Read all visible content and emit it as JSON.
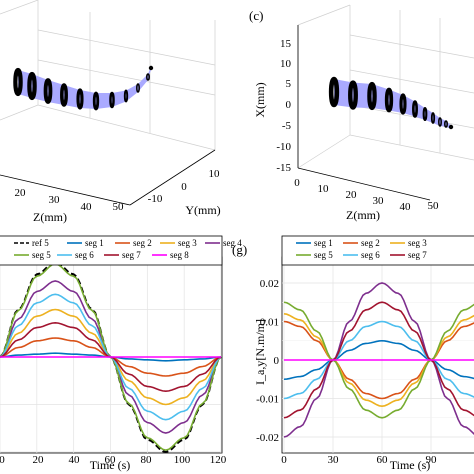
{
  "panels": {
    "c": {
      "label": "(c)",
      "xlabel": "X(mm)",
      "zlabel": "Z(mm)",
      "x_ticks": [
        "15",
        "10",
        "5",
        "0",
        "-5",
        "-10",
        "-15"
      ],
      "z_ticks": [
        "0",
        "10",
        "20",
        "30",
        "40",
        "50"
      ]
    },
    "b": {
      "zlabel": "Z(mm)",
      "ylabel": "Y(mm)",
      "z_ticks": [
        "20",
        "30",
        "40",
        "50"
      ],
      "y_ticks": [
        "10",
        "0",
        "-10"
      ]
    },
    "f": {
      "xlabel": "Time (s)",
      "x_ticks": [
        "0",
        "20",
        "40",
        "60",
        "80",
        "100",
        "120"
      ]
    },
    "g": {
      "label": "(g)",
      "ylabel": "I_a,y[N.m/m]",
      "xlabel": "Time (s)",
      "y_ticks": [
        "0.02",
        "0.01",
        "0",
        "-0.01",
        "-0.02"
      ],
      "x_ticks": [
        "0",
        "30",
        "60",
        "90"
      ]
    }
  },
  "legend_f": [
    "ref 5",
    "seg 1",
    "seg 2",
    "seg 3",
    "seg 4",
    "seg 5",
    "seg 6",
    "seg 7",
    "seg 8"
  ],
  "legend_g": [
    "seg 1",
    "seg 2",
    "seg 3",
    "seg 5",
    "seg 6",
    "seg 7"
  ],
  "colors": {
    "seg1": "#0072BD",
    "seg2": "#D95319",
    "seg3": "#EDB120",
    "seg4": "#7E2F8E",
    "seg5": "#77AC30",
    "seg6": "#4DBEEE",
    "seg7": "#A2142F",
    "seg8": "#FF00FF",
    "tube": "#aaaaff"
  },
  "chart_data": [
    {
      "type": "line",
      "panel": "f",
      "xlabel": "Time (s)",
      "xlim": [
        0,
        120
      ],
      "x": [
        0,
        10,
        20,
        30,
        40,
        50,
        60,
        70,
        80,
        90,
        100,
        110,
        120
      ],
      "series": [
        {
          "name": "ref 5",
          "values": [
            0,
            0.5,
            0.87,
            1.0,
            0.87,
            0.5,
            0,
            -0.5,
            -0.87,
            -1.0,
            -0.87,
            -0.5,
            0
          ]
        },
        {
          "name": "seg 1",
          "values": [
            0,
            0.02,
            0.03,
            0.04,
            0.03,
            0.02,
            0,
            -0.02,
            -0.03,
            -0.04,
            -0.03,
            -0.02,
            0
          ]
        },
        {
          "name": "seg 2",
          "values": [
            0,
            0.1,
            0.17,
            0.2,
            0.17,
            0.1,
            0,
            -0.1,
            -0.17,
            -0.2,
            -0.17,
            -0.1,
            0
          ]
        },
        {
          "name": "seg 3",
          "values": [
            0,
            0.25,
            0.43,
            0.5,
            0.43,
            0.25,
            0,
            -0.25,
            -0.43,
            -0.5,
            -0.43,
            -0.25,
            0
          ]
        },
        {
          "name": "seg 4",
          "values": [
            0,
            0.4,
            0.69,
            0.8,
            0.69,
            0.4,
            0,
            -0.4,
            -0.69,
            -0.8,
            -0.69,
            -0.4,
            0
          ]
        },
        {
          "name": "seg 5",
          "values": [
            0,
            0.49,
            0.85,
            0.98,
            0.85,
            0.49,
            0,
            -0.49,
            -0.85,
            -0.98,
            -0.85,
            -0.49,
            0
          ]
        },
        {
          "name": "seg 6",
          "values": [
            0,
            0.33,
            0.57,
            0.66,
            0.57,
            0.33,
            0,
            -0.33,
            -0.57,
            -0.66,
            -0.57,
            -0.33,
            0
          ]
        },
        {
          "name": "seg 7",
          "values": [
            0,
            0.18,
            0.31,
            0.36,
            0.31,
            0.18,
            0,
            -0.18,
            -0.31,
            -0.36,
            -0.31,
            -0.18,
            0
          ]
        },
        {
          "name": "seg 8",
          "values": [
            0,
            0,
            0,
            0,
            0,
            0,
            0,
            0,
            0,
            0,
            0,
            0,
            0
          ]
        }
      ]
    },
    {
      "type": "line",
      "panel": "g",
      "xlabel": "Time (s)",
      "ylabel": "I_a,y[N.m/m]",
      "xlim": [
        0,
        120
      ],
      "ylim": [
        -0.025,
        0.025
      ],
      "x": [
        0,
        10,
        20,
        30,
        40,
        50,
        60,
        70,
        80,
        90,
        100,
        110,
        120
      ],
      "series": [
        {
          "name": "seg 1",
          "values": [
            -0.005,
            -0.0043,
            -0.0025,
            0,
            0.0025,
            0.0043,
            0.005,
            0.0043,
            0.0025,
            0,
            -0.0025,
            -0.0043,
            -0.005
          ]
        },
        {
          "name": "seg 2",
          "values": [
            0.01,
            0.0087,
            0.005,
            0,
            -0.005,
            -0.0087,
            -0.01,
            -0.0087,
            -0.005,
            0,
            0.005,
            0.0087,
            0.01
          ]
        },
        {
          "name": "seg 3",
          "values": [
            0.012,
            0.0104,
            0.006,
            0,
            -0.006,
            -0.0104,
            -0.012,
            -0.0104,
            -0.006,
            0,
            0.006,
            0.0104,
            0.012
          ]
        },
        {
          "name": "seg 4",
          "values": [
            -0.02,
            -0.0173,
            -0.01,
            0,
            0.01,
            0.0173,
            0.02,
            0.0173,
            0.01,
            0,
            -0.01,
            -0.0173,
            -0.02
          ]
        },
        {
          "name": "seg 5",
          "values": [
            0.015,
            0.013,
            0.0075,
            0,
            -0.0075,
            -0.013,
            -0.015,
            -0.013,
            -0.0075,
            0,
            0.0075,
            0.013,
            0.015
          ]
        },
        {
          "name": "seg 6",
          "values": [
            -0.01,
            -0.0087,
            -0.005,
            0,
            0.005,
            0.0087,
            0.01,
            0.0087,
            0.005,
            0,
            -0.005,
            -0.0087,
            -0.01
          ]
        },
        {
          "name": "seg 7",
          "values": [
            -0.015,
            -0.013,
            -0.0075,
            0,
            0.0075,
            0.013,
            0.015,
            0.013,
            0.0075,
            0,
            -0.0075,
            -0.013,
            -0.015
          ]
        },
        {
          "name": "seg 8",
          "values": [
            0,
            0,
            0,
            0,
            0,
            0,
            0,
            0,
            0,
            0,
            0,
            0,
            0
          ]
        }
      ]
    }
  ]
}
